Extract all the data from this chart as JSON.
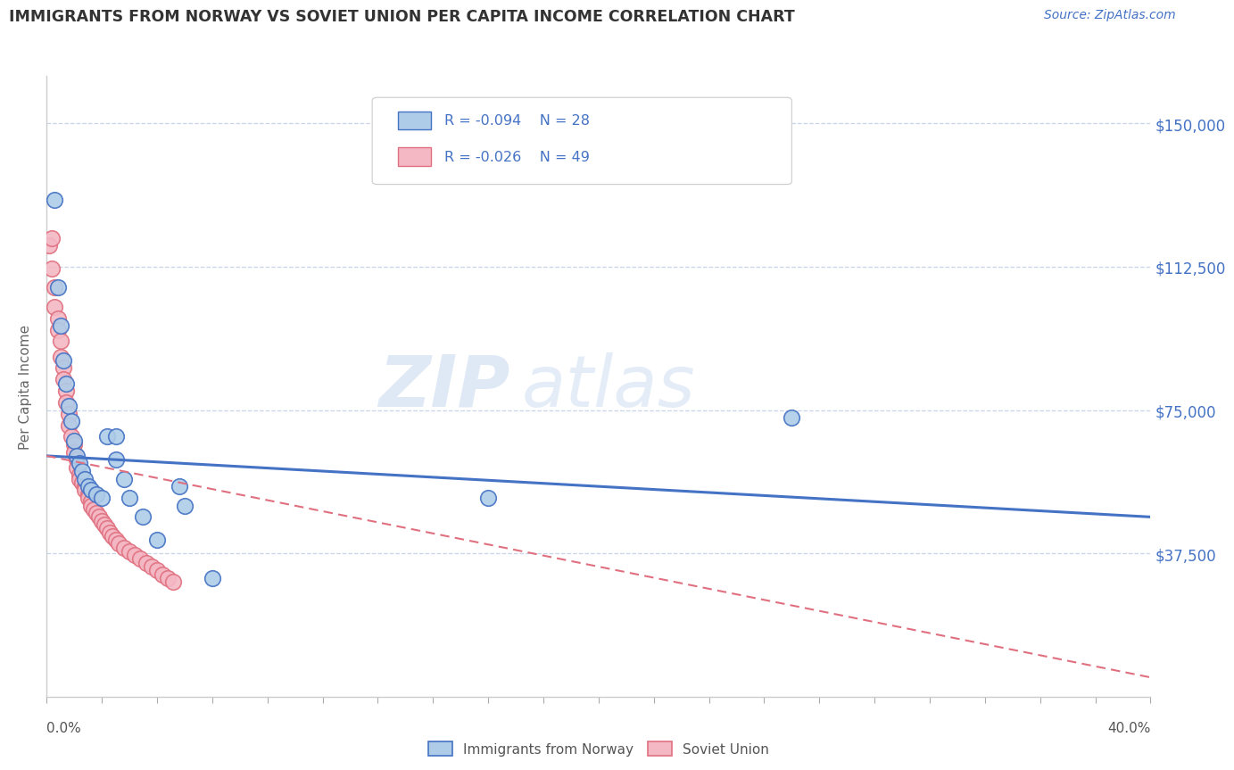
{
  "title": "IMMIGRANTS FROM NORWAY VS SOVIET UNION PER CAPITA INCOME CORRELATION CHART",
  "source": "Source: ZipAtlas.com",
  "ylabel": "Per Capita Income",
  "xlim": [
    0.0,
    0.4
  ],
  "ylim": [
    0,
    162500
  ],
  "yticks": [
    0,
    37500,
    75000,
    112500,
    150000
  ],
  "ytick_labels": [
    "",
    "$37,500",
    "$75,000",
    "$112,500",
    "$150,000"
  ],
  "legend_r1": "-0.094",
  "legend_n1": "28",
  "legend_r2": "-0.026",
  "legend_n2": "49",
  "legend_label1": "Immigrants from Norway",
  "legend_label2": "Soviet Union",
  "norway_color": "#aecce8",
  "norway_edge": "#4472c4",
  "soviet_color": "#f4b8c4",
  "soviet_edge": "#e07080",
  "norway_scatter_x": [
    0.003,
    0.004,
    0.005,
    0.006,
    0.007,
    0.008,
    0.009,
    0.01,
    0.011,
    0.012,
    0.013,
    0.014,
    0.015,
    0.016,
    0.018,
    0.02,
    0.022,
    0.025,
    0.025,
    0.028,
    0.03,
    0.035,
    0.04,
    0.048,
    0.05,
    0.27,
    0.16,
    0.06
  ],
  "norway_scatter_y": [
    130000,
    107000,
    97000,
    88000,
    82000,
    76000,
    72000,
    67000,
    63000,
    61000,
    59000,
    57000,
    55000,
    54000,
    53000,
    52000,
    68000,
    68000,
    62000,
    57000,
    52000,
    47000,
    41000,
    55000,
    50000,
    73000,
    52000,
    31000
  ],
  "soviet_scatter_x": [
    0.001,
    0.002,
    0.003,
    0.003,
    0.004,
    0.004,
    0.005,
    0.005,
    0.006,
    0.006,
    0.007,
    0.007,
    0.008,
    0.008,
    0.009,
    0.01,
    0.01,
    0.011,
    0.011,
    0.012,
    0.012,
    0.013,
    0.014,
    0.014,
    0.015,
    0.015,
    0.016,
    0.016,
    0.017,
    0.018,
    0.019,
    0.02,
    0.021,
    0.022,
    0.023,
    0.024,
    0.025,
    0.026,
    0.028,
    0.03,
    0.032,
    0.034,
    0.036,
    0.038,
    0.04,
    0.042,
    0.044,
    0.046,
    0.002
  ],
  "soviet_scatter_y": [
    118000,
    112000,
    107000,
    102000,
    99000,
    96000,
    93000,
    89000,
    86000,
    83000,
    80000,
    77000,
    74000,
    71000,
    68000,
    66000,
    64000,
    62000,
    60000,
    58000,
    57000,
    56000,
    55000,
    54000,
    53000,
    52000,
    51000,
    50000,
    49000,
    48000,
    47000,
    46000,
    45000,
    44000,
    43000,
    42000,
    41000,
    40000,
    39000,
    38000,
    37000,
    36000,
    35000,
    34000,
    33000,
    32000,
    31000,
    30000,
    120000
  ],
  "norway_line_x": [
    0.0,
    0.4
  ],
  "norway_line_y": [
    63000,
    47000
  ],
  "soviet_line_x": [
    0.0,
    0.4
  ],
  "soviet_line_y": [
    63000,
    5000
  ],
  "watermark_zip": "ZIP",
  "watermark_atlas": "atlas",
  "background_color": "#ffffff",
  "grid_color": "#c8d4e8",
  "title_color": "#333333",
  "axis_label_color": "#666666",
  "right_tick_color": "#4472c4",
  "bottom_tick_color": "#555555"
}
